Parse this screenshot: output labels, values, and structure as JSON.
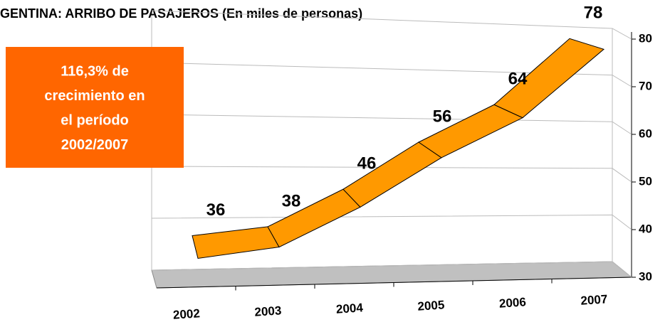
{
  "chart_data": {
    "type": "line3d",
    "title": "GENTINA: ARRIBO DE PASAJEROS (En miles de personas)",
    "annotation": [
      "116,3% de",
      "crecimiento en",
      "el período",
      "2002/2007"
    ],
    "categories": [
      "2002",
      "2003",
      "2004",
      "2005",
      "2006",
      "2007"
    ],
    "values": [
      36,
      38,
      46,
      56,
      64,
      78
    ],
    "color": "#ff9900",
    "annotation_color": "#ff6600",
    "ylim": [
      30,
      80
    ],
    "yticks": [
      30,
      40,
      50,
      60,
      70,
      80
    ],
    "grid": true
  }
}
